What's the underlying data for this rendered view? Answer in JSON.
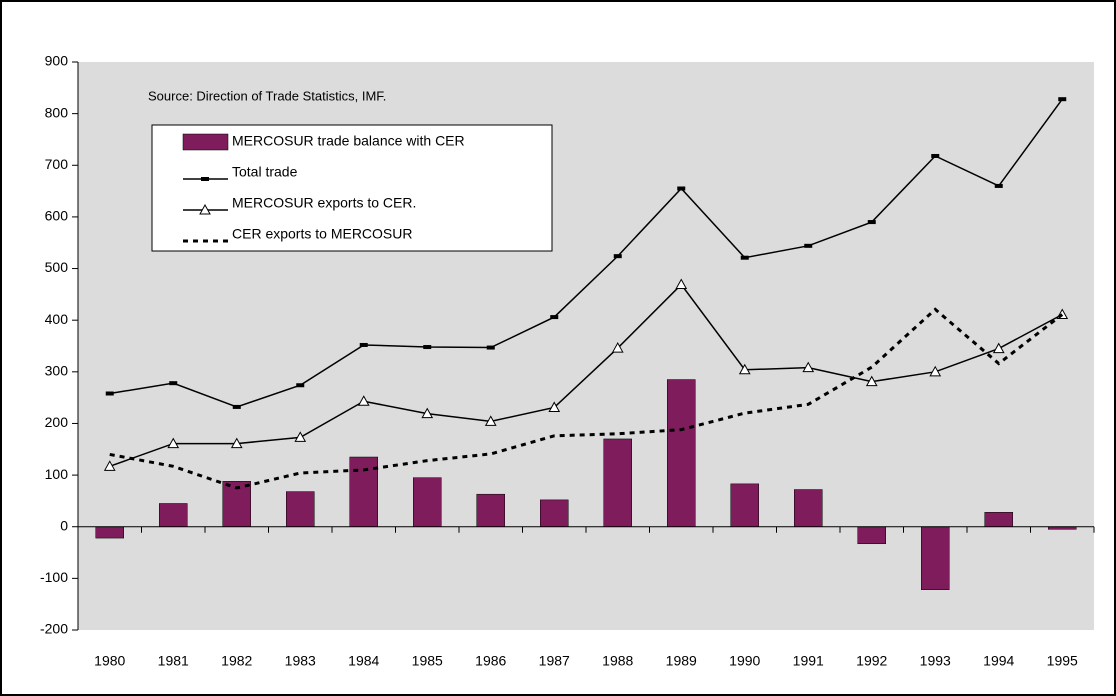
{
  "chart_data": {
    "type": "combo",
    "annotation": "Source:  Direction of Trade Statistics, IMF.",
    "categories": [
      "1980",
      "1981",
      "1982",
      "1983",
      "1984",
      "1985",
      "1986",
      "1987",
      "1988",
      "1989",
      "1990",
      "1991",
      "1992",
      "1993",
      "1994",
      "1995"
    ],
    "series": [
      {
        "name": "MERCOSUR trade balance with CER",
        "type": "bar",
        "color": "#7f1d5c",
        "values": [
          -22,
          45,
          88,
          68,
          135,
          95,
          63,
          52,
          170,
          285,
          83,
          72,
          -33,
          -122,
          28,
          -5
        ]
      },
      {
        "name": "Total trade",
        "type": "line",
        "marker": "dash",
        "dashed": false,
        "color": "#000000",
        "values": [
          258,
          278,
          232,
          274,
          352,
          348,
          347,
          406,
          524,
          655,
          521,
          544,
          590,
          718,
          660,
          828
        ]
      },
      {
        "name": "MERCOSUR exports to CER.",
        "type": "line",
        "marker": "triangle",
        "dashed": false,
        "color": "#000000",
        "values": [
          117,
          161,
          161,
          173,
          243,
          219,
          204,
          231,
          346,
          469,
          304,
          308,
          281,
          300,
          345,
          411
        ]
      },
      {
        "name": "CER exports to MERCOSUR",
        "type": "line",
        "marker": "none",
        "dashed": true,
        "color": "#000000",
        "values": [
          140,
          117,
          75,
          104,
          110,
          128,
          141,
          176,
          180,
          188,
          220,
          237,
          309,
          421,
          316,
          411
        ]
      }
    ],
    "ylim": [
      -200,
      900
    ],
    "yticks": [
      -200,
      -100,
      0,
      100,
      200,
      300,
      400,
      500,
      600,
      700,
      800,
      900
    ],
    "grid": false
  }
}
